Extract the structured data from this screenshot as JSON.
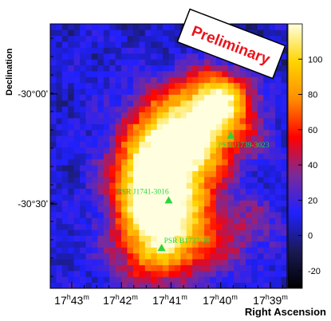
{
  "chart_data": {
    "type": "heatmap",
    "xlabel": "Right Ascension",
    "ylabel": "Declination",
    "x_ticks": [
      {
        "h": "17",
        "m": "43"
      },
      {
        "h": "17",
        "m": "42"
      },
      {
        "h": "17",
        "m": "41"
      },
      {
        "h": "17",
        "m": "40"
      },
      {
        "h": "17",
        "m": "39"
      }
    ],
    "y_ticks": [
      "-30°00'",
      "-30°30'"
    ],
    "colorbar": {
      "ticks": [
        -20,
        0,
        20,
        40,
        60,
        80,
        100
      ],
      "range": [
        -30,
        120
      ],
      "colors": [
        "#000000",
        "#1a1a55",
        "#2020ff",
        "#7a2a9a",
        "#ff0000",
        "#ff8c00",
        "#ffd400",
        "#ffffe0"
      ]
    },
    "blobs": [
      {
        "ra": 16.8,
        "dec": -15.1,
        "amp": 120,
        "sx": 6.5,
        "sy": 12
      },
      {
        "ra": 21.3,
        "dec": -10.3,
        "amp": 60,
        "sx": 8,
        "sy": 7
      },
      {
        "ra": 25.2,
        "dec": -2.0,
        "amp": 100,
        "sx": 8.5,
        "sy": 7.5
      },
      {
        "ra": 27.5,
        "dec": 3.0,
        "amp": 40,
        "sx": 4,
        "sy": 5
      },
      {
        "ra": 30.8,
        "dec": 1.2,
        "amp": 30,
        "sx": 5,
        "sy": 5
      },
      {
        "ra": 23.0,
        "dec": -20.8,
        "amp": 35,
        "sx": 5,
        "sy": 6
      },
      {
        "ra": 19.0,
        "dec": -24.6,
        "amp": 20,
        "sx": 8,
        "sy": 5
      },
      {
        "ra": 30.0,
        "dec": -21.9,
        "amp": 25,
        "sx": 6,
        "sy": 6
      },
      {
        "ra": 36.5,
        "dec": -7.8,
        "amp": 15,
        "sx": 4,
        "sy": 4
      },
      {
        "ra": 35.5,
        "dec": -18.2,
        "amp": 15,
        "sx": 5,
        "sy": 5
      },
      {
        "ra": 34.0,
        "dec": -6.0,
        "amp": -15,
        "sx": 8,
        "sy": 10
      },
      {
        "ra": 27.5,
        "dec": 10.0,
        "amp": -10,
        "sx": 10,
        "sy": 8
      }
    ],
    "sources": [
      {
        "name": "PSR J1741-3016",
        "ra": 19.5,
        "dec": -15.0
      },
      {
        "name": "PSR B1737-30",
        "ra": 18.3,
        "dec": -23.1
      },
      {
        "name": "PSR J1739-3023",
        "ra": 30.0,
        "dec": -4.0
      }
    ]
  },
  "stamp": {
    "text": "Preliminary"
  }
}
